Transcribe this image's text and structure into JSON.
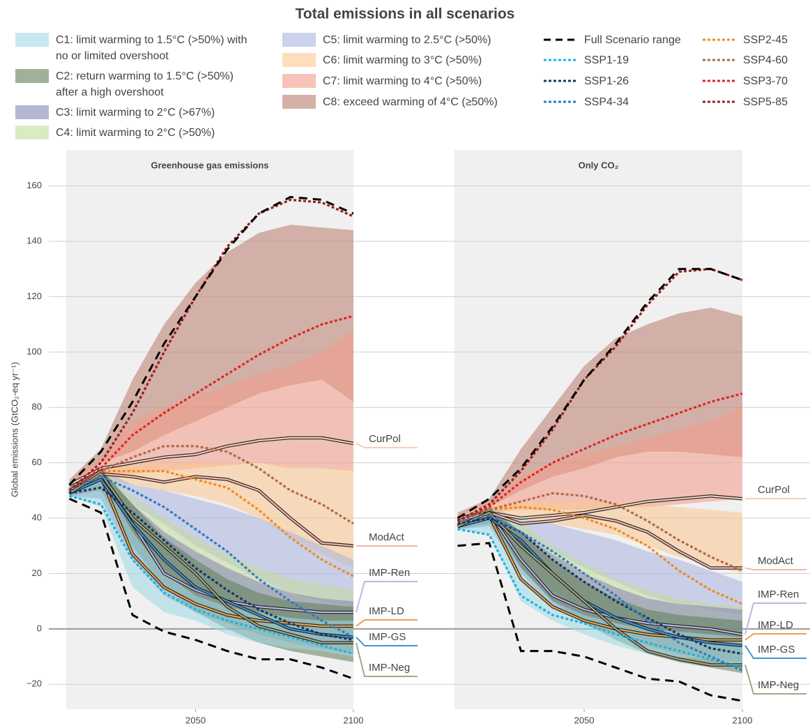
{
  "chart_data": {
    "type": "line",
    "title": "Total emissions in all scenarios",
    "ylabel": "Global emissions (GtCO₂-eq yr⁻¹)",
    "x": [
      2010,
      2020,
      2030,
      2040,
      2050,
      2060,
      2070,
      2080,
      2090,
      2100
    ],
    "xlim": [
      2009,
      2100
    ],
    "xticks": [
      2050,
      2100
    ],
    "ylim": [
      -29,
      173
    ],
    "yticks": [
      {
        "value": -20,
        "label": "−20"
      },
      0,
      20,
      40,
      60,
      80,
      100,
      120,
      140,
      160
    ],
    "grid": true,
    "legend": {
      "bands": [
        {
          "name": "C1: limit warming to 1.5°C (>50%) with no or limited overshoot",
          "color": "#9fd8e8"
        },
        {
          "name": "C2: return warming to 1.5°C (>50%) after a high overshoot",
          "color": "#5f7d58"
        },
        {
          "name": "C3: limit warming to 2°C (>67%)",
          "color": "#8485b4"
        },
        {
          "name": "C4: limit warming to 2°C (>50%)",
          "color": "#c2dd9c"
        },
        {
          "name": "C5: limit warming to 2.5°C (>50%)",
          "color": "#a9b5e0"
        },
        {
          "name": "C6: limit warming to 3°C (>50%)",
          "color": "#fbc78f"
        },
        {
          "name": "C7: limit warming to 4°C (>50%)",
          "color": "#f29a88"
        },
        {
          "name": "C8: exceed warming of 4°C (≥50%)",
          "color": "#b97b6c"
        }
      ],
      "range": {
        "name": "Full Scenario range",
        "color": "#000000"
      },
      "lines": [
        {
          "name": "SSP1-19",
          "color": "#1eb4d8"
        },
        {
          "name": "SSP1-26",
          "color": "#1a3563"
        },
        {
          "name": "SSP4-34",
          "color": "#2e7bbf"
        },
        {
          "name": "SSP2-45",
          "color": "#f08a1c"
        },
        {
          "name": "SSP4-60",
          "color": "#b06a48"
        },
        {
          "name": "SSP3-70",
          "color": "#e02525"
        },
        {
          "name": "SSP5-85",
          "color": "#9b1f1f"
        }
      ]
    },
    "panels": [
      {
        "title": "Greenhouse gas emissions",
        "bands": [
          {
            "low": [
              48,
              44,
              15,
              6,
              3,
              -2,
              -5,
              -7,
              -8,
              -10
            ],
            "high": [
              52,
              55,
              35,
              20,
              12,
              8,
              6,
              4,
              3,
              3
            ]
          },
          {
            "low": [
              48,
              50,
              30,
              15,
              6,
              0,
              -5,
              -8,
              -10,
              -12
            ],
            "high": [
              52,
              58,
              45,
              33,
              25,
              18,
              13,
              10,
              9,
              8
            ]
          },
          {
            "low": [
              48,
              47,
              25,
              12,
              6,
              2,
              -2,
              -5,
              -7,
              -9
            ],
            "high": [
              52,
              57,
              45,
              35,
              28,
              22,
              17,
              13,
              11,
              10
            ]
          },
          {
            "low": [
              48,
              50,
              35,
              22,
              14,
              8,
              4,
              1,
              -1,
              -2
            ],
            "high": [
              53,
              58,
              48,
              40,
              33,
              27,
              22,
              18,
              16,
              14
            ]
          },
          {
            "low": [
              48,
              52,
              45,
              38,
              30,
              24,
              18,
              13,
              10,
              8
            ],
            "high": [
              53,
              58,
              52,
              50,
              47,
              44,
              40,
              35,
              30,
              25
            ]
          },
          {
            "low": [
              49,
              54,
              52,
              50,
              48,
              45,
              40,
              33,
              27,
              22
            ],
            "high": [
              53,
              58,
              60,
              60,
              60,
              60,
              60,
              59,
              58,
              58
            ]
          },
          {
            "low": [
              49,
              56,
              56,
              57,
              58,
              59,
              60,
              58,
              58,
              57
            ],
            "high": [
              53,
              62,
              75,
              80,
              84,
              88,
              92,
              95,
              100,
              108
            ]
          },
          {
            "low": [
              52,
              60,
              64,
              70,
              75,
              80,
              85,
              88,
              90,
              82
            ],
            "high": [
              54,
              65,
              90,
              110,
              125,
              136,
              143,
              146,
              145,
              144
            ]
          }
        ],
        "range": {
          "upper": [
            52,
            64,
            82,
            103,
            120,
            137,
            150,
            156,
            155,
            150
          ],
          "lower": [
            47,
            42,
            5,
            -1,
            -4,
            -8,
            -11,
            -11,
            -14,
            -18
          ]
        },
        "lines": [
          [
            48,
            45,
            25,
            13,
            7,
            3,
            0,
            -3,
            -6,
            -9
          ],
          [
            49,
            51,
            42,
            32,
            22,
            14,
            7,
            2,
            -2,
            -4
          ],
          [
            50,
            55,
            50,
            44,
            36,
            28,
            18,
            10,
            3,
            -3
          ],
          [
            50,
            57,
            57,
            57,
            54,
            51,
            43,
            33,
            25,
            19
          ],
          [
            50,
            57,
            62,
            66,
            66,
            64,
            58,
            50,
            45,
            38
          ],
          [
            50,
            58,
            70,
            78,
            85,
            92,
            99,
            105,
            110,
            113
          ],
          [
            50,
            60,
            78,
            100,
            120,
            138,
            150,
            155,
            154,
            149
          ]
        ],
        "imp": [
          {
            "name": "CurPol",
            "color": "#f7cdb9",
            "values": [
              52,
              58,
              60,
              62,
              63,
              66,
              68,
              69,
              69,
              67
            ]
          },
          {
            "name": "ModAct",
            "color": "#f4b8a8",
            "values": [
              50,
              56,
              55,
              53,
              55,
              54,
              50,
              40,
              31,
              30
            ]
          },
          {
            "name": "IMP-Ren",
            "color": "#b9b9e0",
            "values": [
              49,
              57,
              38,
              20,
              14,
              10,
              8,
              7,
              6,
              6
            ]
          },
          {
            "name": "IMP-LD",
            "color": "#e9a24a",
            "values": [
              49,
              55,
              27,
              15,
              9,
              5,
              3,
              2,
              1,
              1
            ]
          },
          {
            "name": "IMP-GS",
            "color": "#3f95d6",
            "values": [
              49,
              54,
              38,
              25,
              15,
              10,
              5,
              0,
              -2,
              -3
            ]
          },
          {
            "name": "IMP-Neg",
            "color": "#a3a887",
            "values": [
              49,
              56,
              40,
              30,
              20,
              8,
              1,
              -2,
              -5,
              -5
            ]
          }
        ]
      },
      {
        "title": "Only CO₂",
        "bands": [
          {
            "low": [
              36,
              34,
              10,
              3,
              -2,
              -6,
              -9,
              -10,
              -11,
              -13
            ],
            "high": [
              40,
              42,
              22,
              10,
              5,
              2,
              0,
              -1,
              -2,
              -3
            ]
          },
          {
            "low": [
              36,
              38,
              22,
              10,
              2,
              -4,
              -9,
              -12,
              -14,
              -16
            ],
            "high": [
              40,
              44,
              35,
              25,
              17,
              11,
              7,
              5,
              4,
              3
            ]
          },
          {
            "low": [
              36,
              37,
              20,
              8,
              2,
              -2,
              -6,
              -9,
              -11,
              -12
            ],
            "high": [
              40,
              43,
              35,
              27,
              20,
              15,
              11,
              9,
              8,
              7
            ]
          },
          {
            "low": [
              36,
              38,
              25,
              14,
              7,
              2,
              -1,
              -3,
              -4,
              -5
            ],
            "high": [
              40,
              44,
              38,
              30,
              24,
              18,
              14,
              11,
              9,
              8
            ]
          },
          {
            "low": [
              37,
              39,
              34,
              28,
              22,
              17,
              12,
              9,
              7,
              5
            ],
            "high": [
              41,
              44,
              40,
              38,
              35,
              32,
              28,
              25,
              21,
              17
            ]
          },
          {
            "low": [
              37,
              41,
              40,
              38,
              36,
              34,
              30,
              26,
              23,
              20
            ],
            "high": [
              41,
              45,
              46,
              46,
              46,
              46,
              45,
              44,
              43,
              42
            ]
          },
          {
            "low": [
              38,
              42,
              43,
              43,
              43,
              44,
              44,
              45,
              46,
              47
            ],
            "high": [
              41,
              46,
              55,
              60,
              63,
              66,
              69,
              72,
              75,
              80
            ]
          },
          {
            "low": [
              39,
              44,
              50,
              55,
              58,
              62,
              64,
              64,
              63,
              62
            ],
            "high": [
              42,
              47,
              65,
              80,
              95,
              105,
              110,
              114,
              116,
              113
            ]
          }
        ],
        "range": {
          "upper": [
            40,
            47,
            58,
            73,
            90,
            103,
            118,
            130,
            130,
            126
          ],
          "lower": [
            30,
            31,
            -8,
            -8,
            -10,
            -14,
            -18,
            -19,
            -24,
            -26
          ]
        },
        "lines": [
          [
            36,
            34,
            12,
            5,
            2,
            -2,
            -5,
            -8,
            -11,
            -14
          ],
          [
            38,
            40,
            35,
            25,
            17,
            10,
            4,
            -2,
            -7,
            -9
          ],
          [
            39,
            41,
            35,
            28,
            20,
            12,
            3,
            -5,
            -10,
            -15
          ],
          [
            39,
            43,
            44,
            43,
            40,
            36,
            30,
            21,
            14,
            9
          ],
          [
            39,
            43,
            46,
            49,
            48,
            45,
            39,
            32,
            26,
            21
          ],
          [
            39,
            44,
            53,
            60,
            65,
            70,
            74,
            78,
            82,
            85
          ],
          [
            39,
            45,
            57,
            72,
            90,
            102,
            117,
            129,
            130,
            126
          ]
        ],
        "imp": [
          {
            "name": "CurPol",
            "color": "#f7cdb9",
            "values": [
              40,
              42,
              40,
              41,
              42,
              44,
              46,
              47,
              48,
              47
            ]
          },
          {
            "name": "ModAct",
            "color": "#f4b8a8",
            "values": [
              39,
              42,
              38,
              39,
              41,
              39,
              35,
              28,
              22,
              22
            ]
          },
          {
            "name": "IMP-Ren",
            "color": "#b9b9e0",
            "values": [
              37,
              42,
              25,
              12,
              7,
              4,
              2,
              1,
              0,
              -2
            ]
          },
          {
            "name": "IMP-LD",
            "color": "#e9a24a",
            "values": [
              37,
              41,
              18,
              8,
              3,
              0,
              -2,
              -3,
              -4,
              -4
            ]
          },
          {
            "name": "IMP-GS",
            "color": "#3f95d6",
            "values": [
              37,
              40,
              32,
              20,
              10,
              4,
              0,
              -3,
              -5,
              -6
            ]
          },
          {
            "name": "IMP-Neg",
            "color": "#a3a887",
            "values": [
              37,
              42,
              30,
              20,
              10,
              0,
              -8,
              -11,
              -13,
              -13
            ]
          }
        ]
      }
    ]
  }
}
